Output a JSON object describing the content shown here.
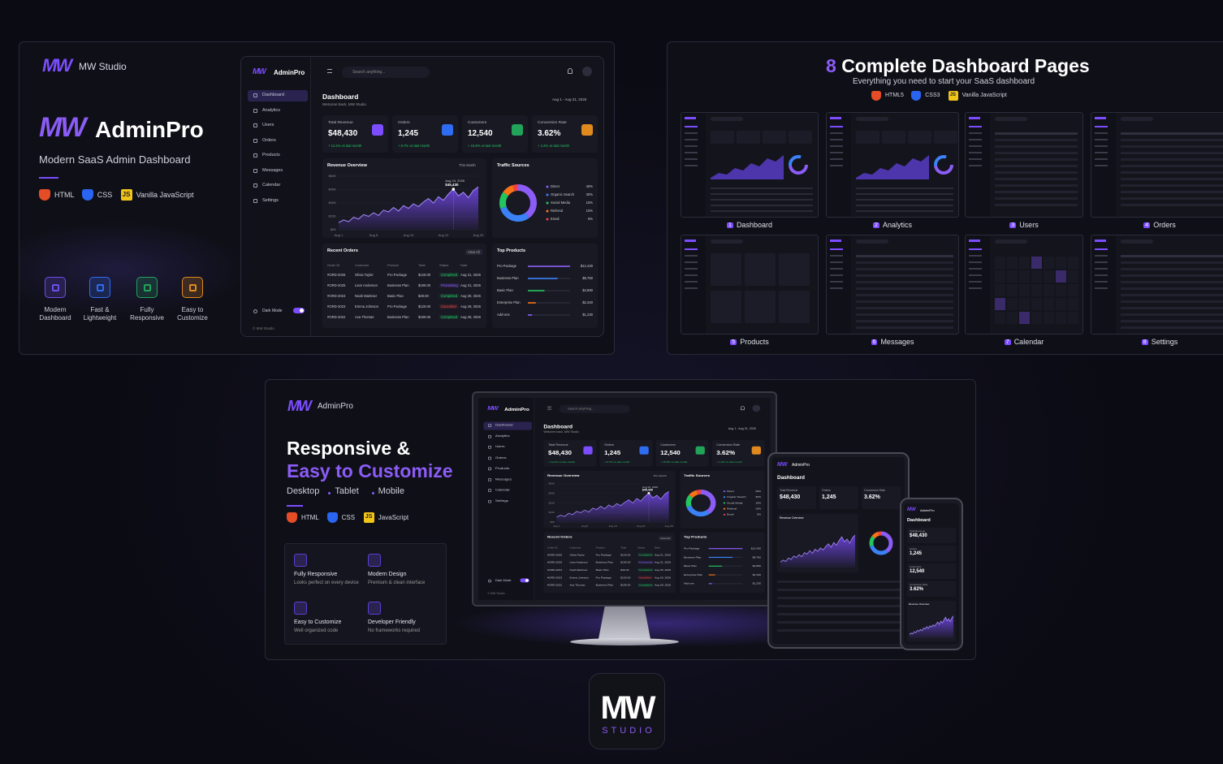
{
  "brand": {
    "logo": "MW",
    "studio": "MW Studio",
    "product_prefix": "MW",
    "product": "AdminPro",
    "tagline": "Modern SaaS Admin Dashboard",
    "tech": [
      "HTML",
      "CSS",
      "Vanilla JavaScript"
    ],
    "features": [
      {
        "label": "Modern Dashboard",
        "color": "#6d4ee8"
      },
      {
        "label": "Fast & Lightweight",
        "color": "#2f6df0"
      },
      {
        "label": "Fully Responsive",
        "color": "#22a35a"
      },
      {
        "label": "Easy to Customize",
        "color": "#e08a1e"
      }
    ]
  },
  "js_badge": "JS",
  "dashboard": {
    "app": "AdminPro",
    "search": "Search anything...",
    "nav": [
      "Dashboard",
      "Analytics",
      "Users",
      "Orders",
      "Products",
      "Messages",
      "Calendar",
      "Settings"
    ],
    "dark_mode": "Dark Mode",
    "footer": "© MW Studio",
    "title": "Dashboard",
    "welcome": "Welcome back, MW Studio",
    "date_range": "Aug 1 - Aug 31, 2026",
    "stats": [
      {
        "label": "Total Revenue",
        "value": "$48,430",
        "change": "+ 12.4% vs last month",
        "color": "#7c4dff"
      },
      {
        "label": "Orders",
        "value": "1,245",
        "change": "+ 8.7% vs last month",
        "color": "#2f6df0"
      },
      {
        "label": "Customers",
        "value": "12,540",
        "change": "+ 15.8% vs last month",
        "color": "#22a35a"
      },
      {
        "label": "Conversion Rate",
        "value": "3.62%",
        "change": "+ 4.2% vs last month",
        "color": "#e08a1e"
      }
    ],
    "revenue": {
      "type": "area",
      "title": "Revenue Overview",
      "period": "This Month",
      "tooltip_date": "Aug 24, 2026",
      "tooltip_value": "$45,430",
      "tooltip_index": 23,
      "color": "#7c4dff",
      "categories": [
        "Aug 1",
        null,
        null,
        null,
        null,
        null,
        null,
        "Aug 8",
        null,
        null,
        null,
        null,
        null,
        null,
        "Aug 15",
        null,
        null,
        null,
        null,
        null,
        null,
        "Aug 22",
        null,
        null,
        null,
        null,
        null,
        null,
        "Aug 29"
      ],
      "values": [
        8000,
        11000,
        9000,
        14000,
        12000,
        17000,
        15000,
        19000,
        16000,
        22000,
        20000,
        25000,
        21000,
        27000,
        24000,
        29000,
        26000,
        31000,
        35000,
        30000,
        37000,
        33000,
        40000,
        45430,
        38000,
        42000,
        36000,
        44000,
        48000
      ],
      "ylim": [
        0,
        60000
      ],
      "yticks": [
        {
          "value": 0,
          "label": "$0K"
        },
        {
          "value": 15000,
          "label": "$15K"
        },
        {
          "value": 30000,
          "label": "$30K"
        },
        {
          "value": 45000,
          "label": "$45K"
        },
        {
          "value": 60000,
          "label": "$60K"
        }
      ]
    },
    "traffic": {
      "type": "pie",
      "title": "Traffic Sources",
      "categories": [
        "Direct",
        "Organic Search",
        "Social Media",
        "Referral",
        "Email"
      ],
      "values": [
        40,
        30,
        15,
        10,
        5
      ],
      "value_labels": [
        "40%",
        "30%",
        "15%",
        "10%",
        "5%"
      ],
      "colors": [
        "#8b5cf6",
        "#3b82f6",
        "#22c55e",
        "#f97316",
        "#ef4444"
      ]
    },
    "orders": {
      "title": "Recent Orders",
      "view_all": "View All",
      "columns": [
        "Order ID",
        "Customer",
        "Product",
        "Total",
        "Status",
        "Date"
      ],
      "rows": [
        {
          "id": "#ORD-2026",
          "customer": "Olivia Taylor",
          "product": "Pro Package",
          "total": "$129.00",
          "status": "Completed",
          "date": "Aug 31, 2026",
          "status_color": "#22c55e"
        },
        {
          "id": "#ORD-2025",
          "customer": "Liam Anderson",
          "product": "Business Plan",
          "total": "$199.00",
          "status": "Processing",
          "date": "Aug 31, 2026",
          "status_color": "#8b5cf6"
        },
        {
          "id": "#ORD-2024",
          "customer": "Noah Martinez",
          "product": "Basic Plan",
          "total": "$49.00",
          "status": "Completed",
          "date": "Aug 30, 2026",
          "status_color": "#22c55e"
        },
        {
          "id": "#ORD-2023",
          "customer": "Emma Johnson",
          "product": "Pro Package",
          "total": "$129.00",
          "status": "Cancelled",
          "date": "Aug 29, 2026",
          "status_color": "#ef4444"
        },
        {
          "id": "#ORD-2022",
          "customer": "Ava Thomas",
          "product": "Business Plan",
          "total": "$199.00",
          "status": "Completed",
          "date": "Aug 28, 2026",
          "status_color": "#22c55e"
        }
      ]
    },
    "products": {
      "type": "bar",
      "title": "Top Products",
      "categories": [
        "Pro Package",
        "Business Plan",
        "Basic Plan",
        "Enterprise Plan",
        "Add-ons"
      ],
      "values": [
        12430,
        8760,
        4890,
        2340,
        1230
      ],
      "value_labels": [
        "$12,430",
        "$8,760",
        "$4,890",
        "$2,340",
        "$1,230"
      ],
      "colors": [
        "#8b5cf6",
        "#3b82f6",
        "#22c55e",
        "#f97316",
        "#8b5cf6"
      ]
    }
  },
  "pages": {
    "count": "8",
    "title": "Complete Dashboard Pages",
    "subtitle": "Everything you need to start your SaaS dashboard",
    "tech": [
      "HTML5",
      "CSS3",
      "Vanilla JavaScript"
    ],
    "items": [
      {
        "number": "1",
        "label": "Dashboard"
      },
      {
        "number": "2",
        "label": "Analytics"
      },
      {
        "number": "3",
        "label": "Users"
      },
      {
        "number": "4",
        "label": "Orders"
      },
      {
        "number": "5",
        "label": "Products"
      },
      {
        "number": "6",
        "label": "Messages"
      },
      {
        "number": "7",
        "label": "Calendar"
      },
      {
        "number": "8",
        "label": "Settings"
      }
    ]
  },
  "responsive": {
    "logo": "MW",
    "app": "AdminPro",
    "heading_1": "Responsive &",
    "heading_2": "Easy to Customize",
    "devices": [
      "Desktop",
      "Tablet",
      "Mobile"
    ],
    "tech": [
      "HTML",
      "CSS",
      "JavaScript"
    ],
    "features": [
      {
        "title": "Fully Responsive",
        "desc": "Looks perfect on every device"
      },
      {
        "title": "Modern Design",
        "desc": "Premium & clean interface"
      },
      {
        "title": "Easy to Customize",
        "desc": "Well organized code"
      },
      {
        "title": "Developer Friendly",
        "desc": "No frameworks required"
      }
    ]
  },
  "footer_logo": {
    "mark": "MW",
    "word": "STUDIO"
  }
}
